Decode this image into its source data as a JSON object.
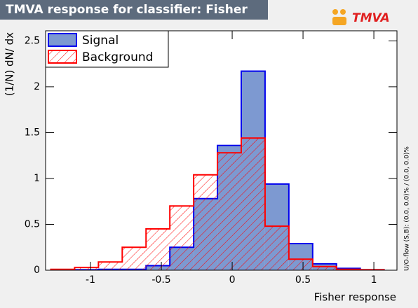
{
  "chart_data": {
    "type": "histogram",
    "title": "TMVA response for classifier: Fisher",
    "logo": "TMVA",
    "x_label": "Fisher response",
    "y_label": "(1/N) dN/ dx",
    "side_note": "U/O-flow (S,B): (0.0, 0.0)% / (0.0, 0.0)%",
    "xlim": [
      -1.317,
      1.163
    ],
    "ylim": [
      0,
      2.61
    ],
    "xticks": [
      -1,
      -0.5,
      0,
      0.5,
      1
    ],
    "yticks": [
      0,
      0.5,
      1,
      1.5,
      2,
      2.5
    ],
    "bins": [
      -1.28,
      -1.112,
      -0.944,
      -0.776,
      -0.608,
      -0.44,
      -0.272,
      -0.104,
      0.064,
      0.232,
      0.4,
      0.568,
      0.736,
      0.904,
      1.072
    ],
    "legend": "top-left",
    "series": [
      {
        "name": "Signal",
        "color": "#0000ee",
        "fill": "#7d99d1",
        "hatch": false,
        "values": [
          0.005,
          0.005,
          0.01,
          0.01,
          0.05,
          0.25,
          0.78,
          1.36,
          2.17,
          0.94,
          0.29,
          0.07,
          0.02,
          0.005
        ]
      },
      {
        "name": "Background",
        "color": "#ff0000",
        "fill": "none",
        "hatch": true,
        "values": [
          0.01,
          0.03,
          0.09,
          0.25,
          0.45,
          0.7,
          1.04,
          1.28,
          1.44,
          0.48,
          0.12,
          0.04,
          0.01,
          0.005
        ]
      }
    ]
  }
}
